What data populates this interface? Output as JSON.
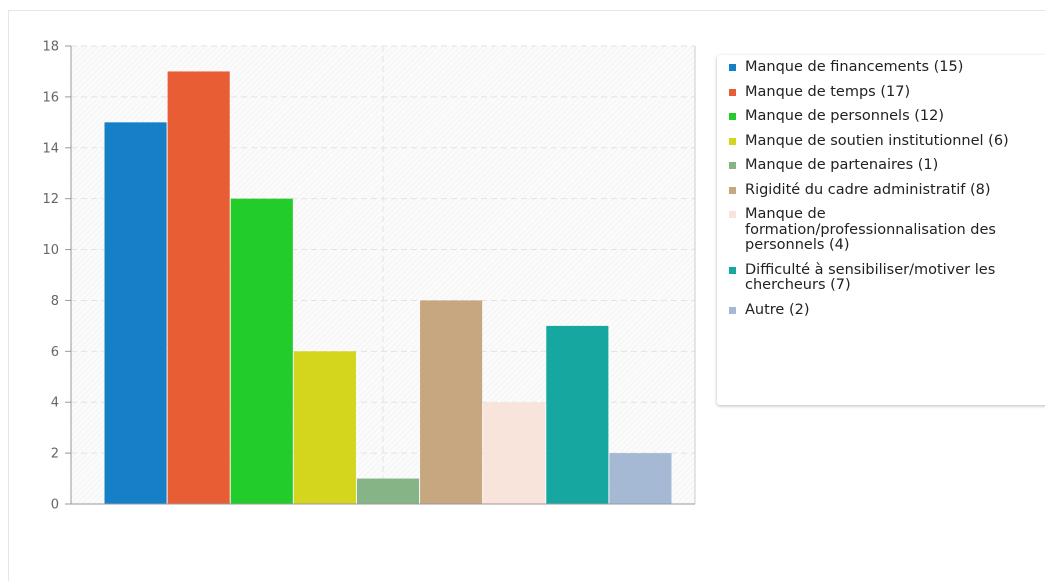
{
  "chart_data": {
    "type": "bar",
    "title": "",
    "xlabel": "",
    "ylabel": "",
    "ylim": [
      0,
      18
    ],
    "yticks": [
      0,
      2,
      4,
      6,
      8,
      10,
      12,
      14,
      16,
      18
    ],
    "grid": true,
    "legend_position": "right",
    "series": [
      {
        "label": "Manque de financements (15)",
        "value": 15,
        "color": "#1580c8"
      },
      {
        "label": "Manque de temps (17)",
        "value": 17,
        "color": "#e85d34"
      },
      {
        "label": "Manque de personnels (12)",
        "value": 12,
        "color": "#21cc2b"
      },
      {
        "label": "Manque de soutien institutionnel (6)",
        "value": 6,
        "color": "#d4d51d"
      },
      {
        "label": "Manque de partenaires (1)",
        "value": 1,
        "color": "#86b486"
      },
      {
        "label": "Rigidité du cadre administratif (8)",
        "value": 8,
        "color": "#c7a77f"
      },
      {
        "label": "Manque de formation/professionnalisation des personnels (4)",
        "value": 4,
        "color": "#f9e4dc"
      },
      {
        "label": "Difficulté à sensibiliser/motiver les chercheurs (7)",
        "value": 7,
        "color": "#17a7a1"
      },
      {
        "label": "Autre (2)",
        "value": 2,
        "color": "#a5b9d5"
      }
    ]
  }
}
